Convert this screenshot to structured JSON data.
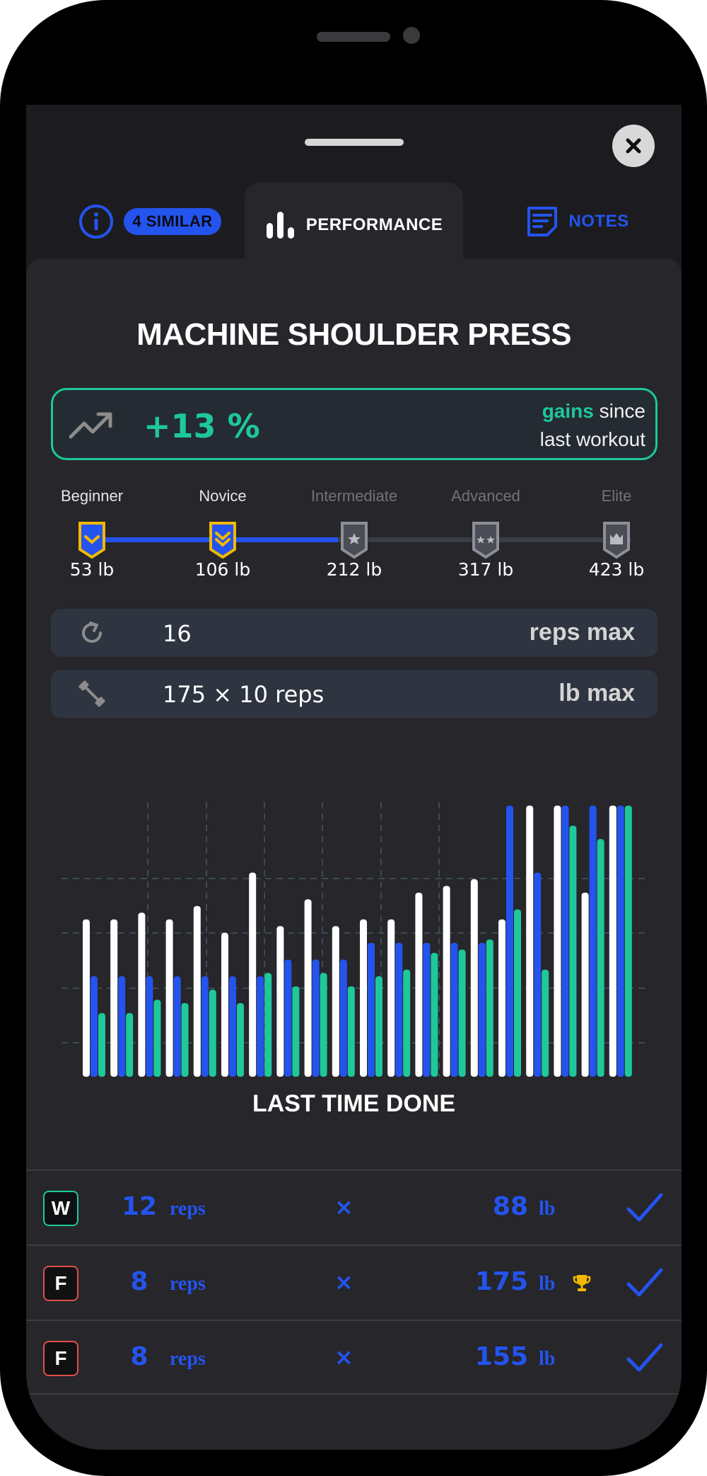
{
  "tabs": {
    "similar_badge": "4 SIMILAR",
    "performance": "PERFORMANCE",
    "notes": "NOTES"
  },
  "exercise": {
    "title": "MACHINE SHOULDER PRESS"
  },
  "gains": {
    "percent": "+13 %",
    "word": "gains",
    "since": "since",
    "line2": "last workout"
  },
  "levels": [
    {
      "name": "Beginner",
      "weight": "53 lb",
      "achieved": true
    },
    {
      "name": "Novice",
      "weight": "106 lb",
      "achieved": true
    },
    {
      "name": "Intermediate",
      "weight": "212 lb",
      "achieved": false
    },
    {
      "name": "Advanced",
      "weight": "317 lb",
      "achieved": false
    },
    {
      "name": "Elite",
      "weight": "423 lb",
      "achieved": false
    }
  ],
  "level_progress": 0.46,
  "stats": {
    "reps_value": "16",
    "reps_label": "reps max",
    "lb_value": "175 × 10 reps",
    "lb_label": "lb max"
  },
  "chart_data": {
    "type": "bar",
    "series": [
      {
        "color": "#ffffff",
        "values": [
          47,
          47,
          49,
          47,
          51,
          43,
          61,
          45,
          53,
          45,
          47,
          47,
          55,
          57,
          59,
          47,
          81,
          81,
          55,
          81
        ]
      },
      {
        "color": "#2454ee",
        "values": [
          30,
          30,
          30,
          30,
          30,
          30,
          30,
          35,
          35,
          35,
          40,
          40,
          40,
          40,
          40,
          81,
          61,
          81,
          81,
          81
        ]
      },
      {
        "color": "#1ec89a",
        "values": [
          19,
          19,
          23,
          22,
          26,
          22,
          31,
          27,
          31,
          27,
          30,
          32,
          37,
          38,
          41,
          50,
          32,
          75,
          71,
          81
        ]
      }
    ],
    "grid": true
  },
  "last_time": {
    "title": "LAST TIME DONE",
    "sets": [
      {
        "tag": "W",
        "tag_color": "#1ec89a",
        "reps": "12",
        "reps_label": "reps",
        "times": "×",
        "weight": "88",
        "weight_label": "lb",
        "record": false
      },
      {
        "tag": "F",
        "tag_color": "#e0504a",
        "reps": "8",
        "reps_label": "reps",
        "times": "×",
        "weight": "175",
        "weight_label": "lb",
        "record": true
      },
      {
        "tag": "F",
        "tag_color": "#e0504a",
        "reps": "8",
        "reps_label": "reps",
        "times": "×",
        "weight": "155",
        "weight_label": "lb",
        "record": false
      }
    ]
  },
  "colors": {
    "accent": "#2454ee",
    "green": "#1ec89a",
    "gold": "#f2b800",
    "red": "#e0504a"
  }
}
